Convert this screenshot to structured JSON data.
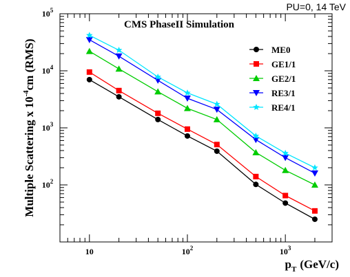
{
  "header_note": "PU=0, 14 TeV",
  "chart_data": {
    "type": "line",
    "title": "CMS PhaseII Simulation",
    "xlabel": {
      "main": "p",
      "sub": "T",
      "unit": "(GeV/c)"
    },
    "ylabel": {
      "pre": "Multiple Scattering x 10",
      "exp": "-4",
      "post": "cm (RMS)"
    },
    "x_scale": "log",
    "y_scale": "log",
    "xlim": [
      5,
      3000
    ],
    "ylim": [
      10,
      100000
    ],
    "x_tick_labels": [
      {
        "value": 10,
        "base": "10",
        "exp": ""
      },
      {
        "value": 100,
        "base": "10",
        "exp": "2"
      },
      {
        "value": 1000,
        "base": "10",
        "exp": "3"
      }
    ],
    "y_tick_labels": [
      {
        "value": 100,
        "base": "10",
        "exp": "2"
      },
      {
        "value": 1000,
        "base": "10",
        "exp": "3"
      },
      {
        "value": 10000,
        "base": "10",
        "exp": "4"
      },
      {
        "value": 100000,
        "base": "10",
        "exp": "5"
      }
    ],
    "grid": false,
    "legend_position": "top-right",
    "x": [
      10,
      20,
      50,
      100,
      200,
      500,
      1000,
      2000
    ],
    "series": [
      {
        "name": "ME0",
        "color": "#000000",
        "marker": "circle",
        "values": [
          7000,
          3500,
          1400,
          720,
          390,
          102,
          48,
          25
        ]
      },
      {
        "name": "GE1/1",
        "color": "#ff0000",
        "marker": "square",
        "values": [
          9500,
          4500,
          1800,
          950,
          510,
          140,
          65,
          35
        ]
      },
      {
        "name": "GE2/1",
        "color": "#00cc00",
        "marker": "triangle-up",
        "values": [
          22000,
          10800,
          4300,
          2200,
          1400,
          370,
          180,
          100
        ]
      },
      {
        "name": "RE3/1",
        "color": "#0000ff",
        "marker": "triangle-down",
        "values": [
          35000,
          18000,
          6800,
          3300,
          2100,
          620,
          300,
          160
        ]
      },
      {
        "name": "RE4/1",
        "color": "#00e5ff",
        "marker": "star",
        "values": [
          42000,
          23000,
          7800,
          4100,
          2600,
          720,
          360,
          200
        ]
      }
    ]
  }
}
